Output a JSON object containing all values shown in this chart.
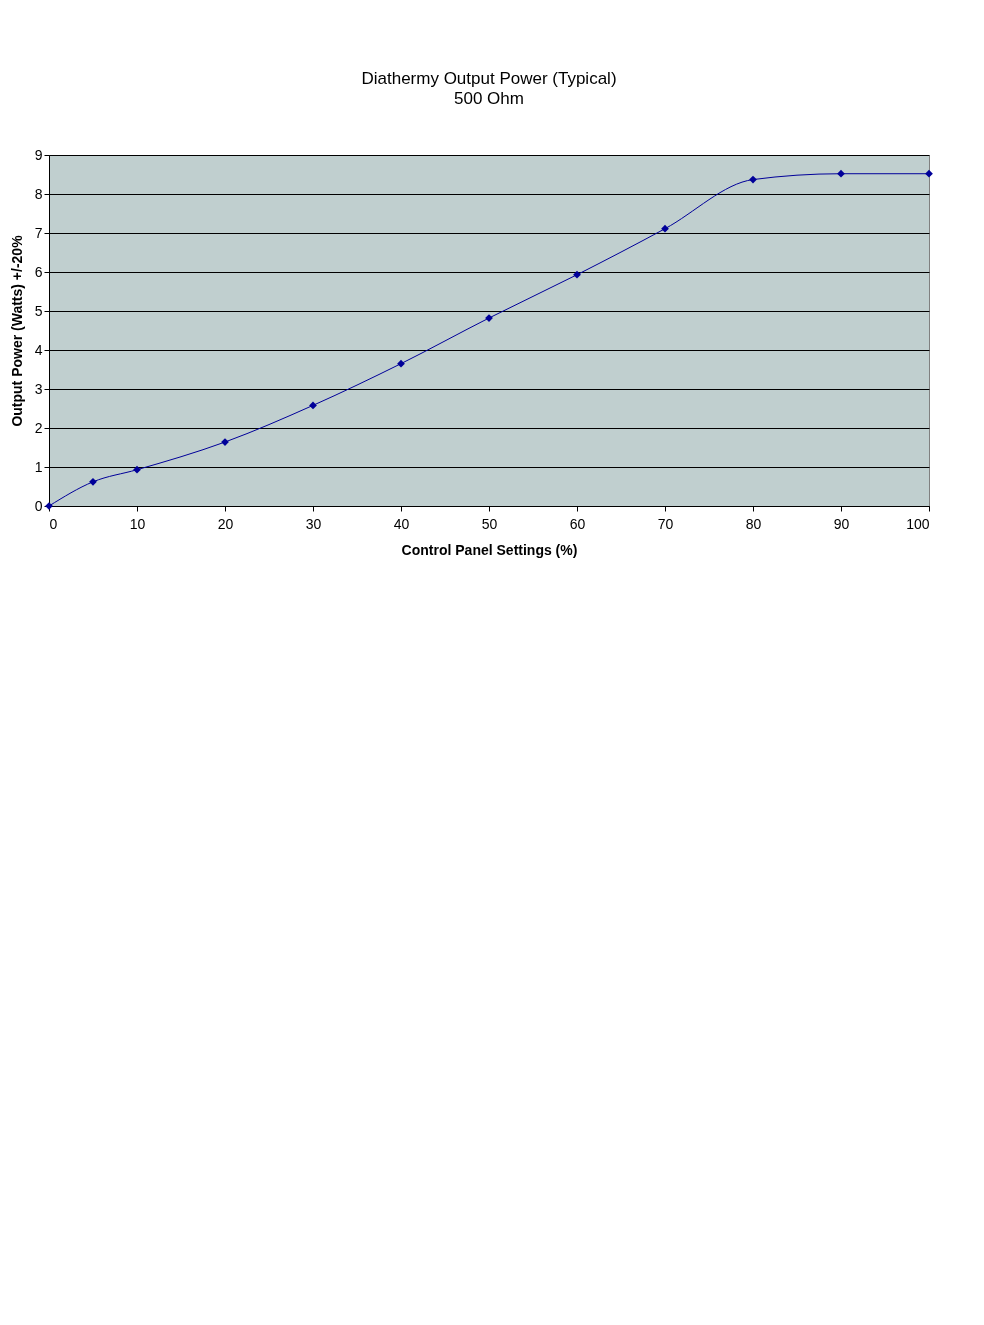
{
  "chart_data": {
    "type": "line",
    "title": "Diathermy Output Power (Typical)",
    "subtitle": "500 Ohm",
    "xlabel": "Control Panel Settings (%)",
    "ylabel": "Output Power (Watts) +/-20%",
    "x": [
      0,
      5,
      10,
      20,
      30,
      40,
      50,
      60,
      70,
      80,
      90,
      100
    ],
    "series": [
      {
        "color": "#000099",
        "values": [
          0,
          0.62,
          0.93,
          1.64,
          2.58,
          3.65,
          4.82,
          5.93,
          7.11,
          8.37,
          8.52,
          8.52
        ]
      }
    ],
    "xlim": [
      0,
      100
    ],
    "xticks": [
      0,
      10,
      20,
      30,
      40,
      50,
      60,
      70,
      80,
      90,
      100
    ],
    "ylim": [
      0,
      9
    ],
    "yticks": [
      0,
      1,
      2,
      3,
      4,
      5,
      6,
      7,
      8,
      9
    ],
    "grid": "y",
    "marker": "diamond",
    "line_style": "solid"
  }
}
